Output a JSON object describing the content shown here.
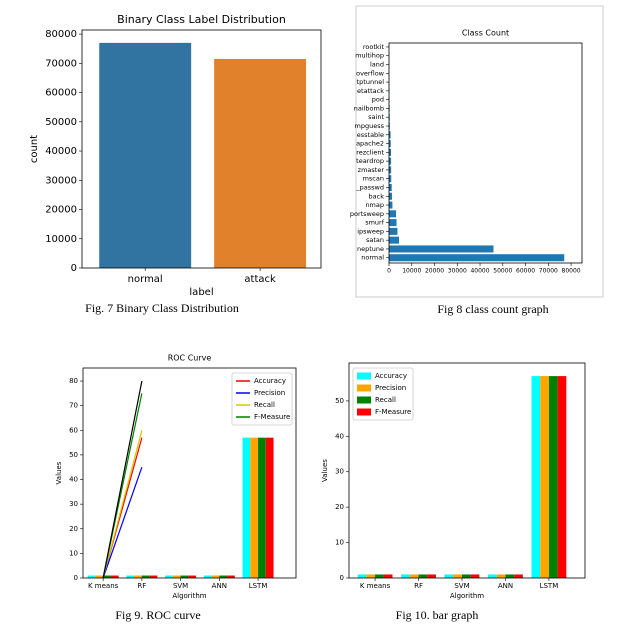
{
  "chart_data": [
    {
      "type": "bar",
      "title": "Binary Class Label Distribution",
      "caption": "Fig. 7 Binary Class Distribution",
      "categories": [
        "normal",
        "attack"
      ],
      "values": [
        77000,
        71500
      ],
      "colors": [
        "#3274a1",
        "#e1812c"
      ],
      "xlabel": "label",
      "ylabel": "count",
      "ylim": [
        0,
        81400
      ],
      "yticks": [
        0,
        10000,
        20000,
        30000,
        40000,
        50000,
        60000,
        70000,
        80000
      ]
    },
    {
      "type": "barh",
      "title": "Class Count",
      "caption": "Fig 8 class count graph",
      "categories": [
        "normal",
        "neptune",
        "satan",
        "ipsweep",
        "smurf",
        "portsweep",
        "nmap",
        "back",
        "_passwd",
        "mscan",
        "zmaster",
        "teardrop",
        "rezclient",
        "apache2",
        "esstable",
        "mpguess",
        "saint",
        "nailbomb",
        "pod",
        "etattack",
        "tptunnel",
        "overflow",
        "land",
        "multihop",
        "rootkit"
      ],
      "values": [
        77000,
        45900,
        4400,
        3700,
        3300,
        3100,
        1500,
        1300,
        1200,
        1000,
        950,
        900,
        900,
        750,
        700,
        350,
        320,
        290,
        200,
        180,
        130,
        50,
        20,
        20,
        20
      ],
      "color": "#1f77b4",
      "xlim": [
        0,
        84800
      ],
      "xticks": [
        0,
        10000,
        20000,
        30000,
        40000,
        50000,
        60000,
        70000,
        80000
      ]
    },
    {
      "type": "line",
      "title": "ROC Curve",
      "caption": "Fig 9. ROC curve",
      "categories": [
        "K means",
        "RF",
        "SVM",
        "ANN",
        "LSTM"
      ],
      "xlabel": "Algorithm",
      "ylabel": "Values",
      "ylim": [
        0,
        85.3
      ],
      "yticks": [
        0,
        10,
        20,
        30,
        40,
        50,
        60,
        70,
        80
      ],
      "legend": "upper right",
      "series": [
        {
          "name": "Accuracy",
          "color": "#ff0000",
          "values": [
            0,
            57,
            null,
            null,
            null
          ]
        },
        {
          "name": "Precision",
          "color": "#0000ff",
          "values": [
            0,
            45,
            null,
            null,
            null
          ]
        },
        {
          "name": "Recall",
          "color": "#cccc00",
          "values": [
            0,
            60,
            null,
            null,
            null
          ]
        },
        {
          "name": "F-Measure",
          "color": "#008000",
          "values": [
            0,
            75,
            null,
            null,
            null
          ]
        },
        {
          "color": "#000000",
          "values": [
            0,
            80,
            null,
            null,
            null
          ]
        }
      ],
      "bar_series": [
        {
          "color": "#00ffff",
          "values": [
            1,
            1,
            1,
            1,
            57
          ]
        },
        {
          "color": "#ffa500",
          "values": [
            1,
            1,
            1,
            1,
            57
          ]
        },
        {
          "color": "#008000",
          "values": [
            1,
            1,
            1,
            1,
            57
          ]
        },
        {
          "color": "#ff0000",
          "values": [
            1,
            1,
            1,
            1,
            57
          ]
        }
      ]
    },
    {
      "type": "bar",
      "caption": "Fig 10. bar graph",
      "categories": [
        "K means",
        "RF",
        "SVM",
        "ANN",
        "LSTM"
      ],
      "xlabel": "Algorithm",
      "ylabel": "Values",
      "ylim": [
        0,
        60.7
      ],
      "yticks": [
        0,
        10,
        20,
        30,
        40,
        50
      ],
      "legend": "upper left",
      "series": [
        {
          "name": "Accuracy",
          "color": "#00ffff",
          "values": [
            1,
            1,
            1,
            1,
            57
          ]
        },
        {
          "name": "Precision",
          "color": "#ffa500",
          "values": [
            1,
            1,
            1,
            1,
            57
          ]
        },
        {
          "name": "Recall",
          "color": "#008000",
          "values": [
            1,
            1,
            1,
            1,
            57
          ]
        },
        {
          "name": "F-Measure",
          "color": "#ff0000",
          "values": [
            1,
            1,
            1,
            1,
            57
          ]
        }
      ]
    }
  ]
}
